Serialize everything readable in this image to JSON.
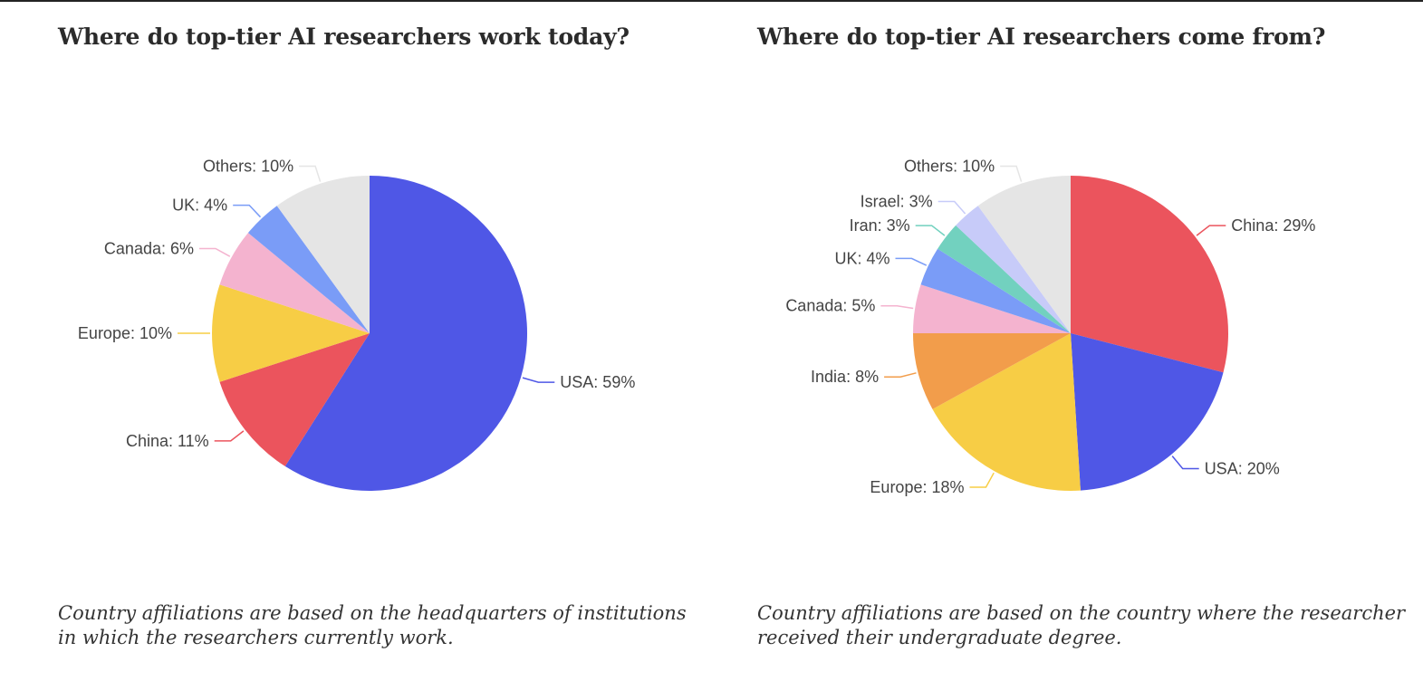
{
  "charts": [
    {
      "title": "Where do top-tier AI researchers work today?",
      "note": "Country affiliations are based on the headquarters of institutions in which the researchers currently work."
    },
    {
      "title": "Where do top-tier AI researchers come from?",
      "note": "Country affiliations are based on the country where the researcher received their undergraduate degree."
    }
  ],
  "chart_data": [
    {
      "type": "pie",
      "title": "Where do top-tier AI researchers work today?",
      "slices": [
        {
          "label": "USA: 59%",
          "value": 59,
          "color": "#4f57e6"
        },
        {
          "label": "China: 11%",
          "value": 11,
          "color": "#eb545d"
        },
        {
          "label": "Europe: 10%",
          "value": 10,
          "color": "#f7cd45"
        },
        {
          "label": "Canada: 6%",
          "value": 6,
          "color": "#f4b3cf"
        },
        {
          "label": "UK: 4%",
          "value": 4,
          "color": "#7a9cf7"
        },
        {
          "label": "Others: 10%",
          "value": 10,
          "color": "#e5e5e5"
        }
      ]
    },
    {
      "type": "pie",
      "title": "Where do top-tier AI researchers come from?",
      "slices": [
        {
          "label": "China: 29%",
          "value": 29,
          "color": "#eb545d"
        },
        {
          "label": "USA: 20%",
          "value": 20,
          "color": "#4f57e6"
        },
        {
          "label": "Europe: 18%",
          "value": 18,
          "color": "#f7cd45"
        },
        {
          "label": "India: 8%",
          "value": 8,
          "color": "#f29d4b"
        },
        {
          "label": "Canada: 5%",
          "value": 5,
          "color": "#f4b3cf"
        },
        {
          "label": "UK: 4%",
          "value": 4,
          "color": "#7a9cf7"
        },
        {
          "label": "Iran: 3%",
          "value": 3,
          "color": "#72d1bf"
        },
        {
          "label": "Israel: 3%",
          "value": 3,
          "color": "#c7cbf9"
        },
        {
          "label": "Others: 10%",
          "value": 10,
          "color": "#e5e5e5"
        }
      ]
    }
  ]
}
